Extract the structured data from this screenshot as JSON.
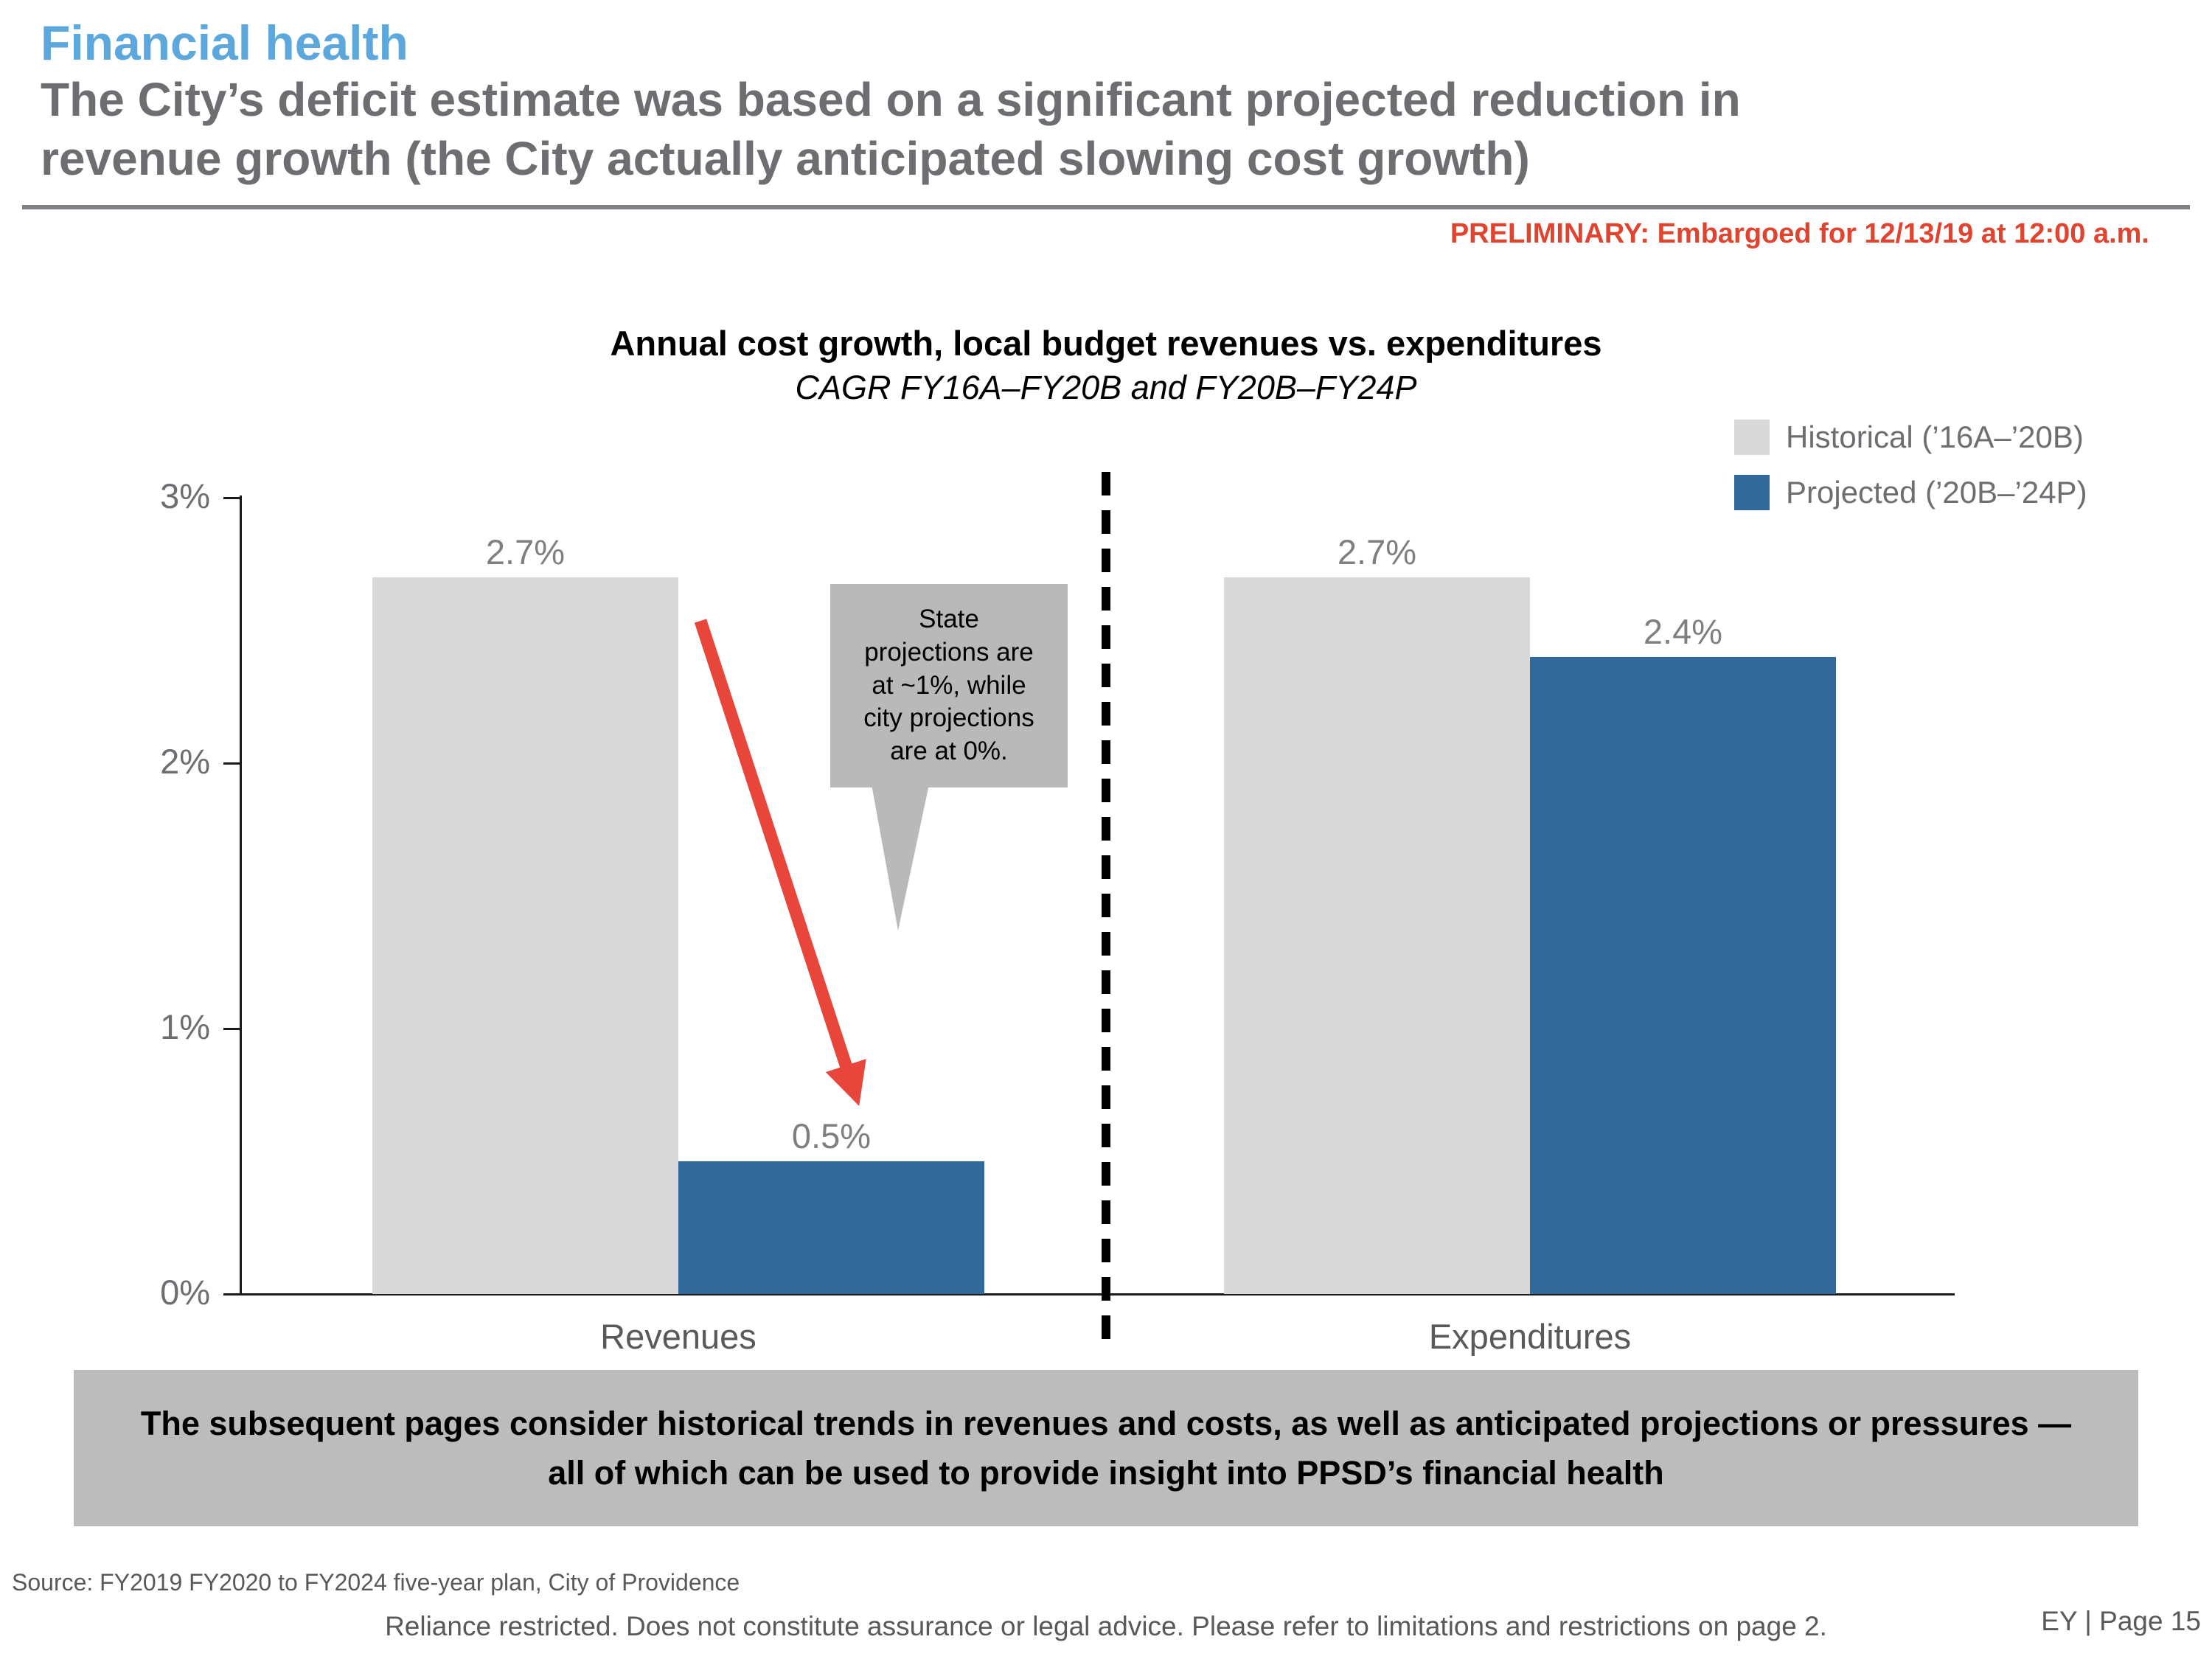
{
  "slide": {
    "kicker": "Financial health",
    "title_lines": [
      "The City’s deficit estimate was based on a significant projected reduction in",
      "revenue growth (the City actually anticipated slowing cost growth)"
    ],
    "preliminary": "PRELIMINARY: Embargoed for 12/13/19 at 12:00 a.m."
  },
  "chart_data": {
    "type": "bar",
    "title": "Annual cost growth, local budget revenues vs. expenditures",
    "subtitle": "CAGR FY16A–FY20B and FY20B–FY24P",
    "categories": [
      "Revenues",
      "Expenditures"
    ],
    "series": [
      {
        "name": "Historical (’16A–’20B)",
        "color": "#d9d9d9",
        "values": [
          2.7,
          2.7
        ],
        "labels": [
          "2.7%",
          "2.7%"
        ]
      },
      {
        "name": "Projected (’20B–’24P)",
        "color": "#316a9a",
        "values": [
          0.5,
          2.4
        ],
        "labels": [
          "0.5%",
          "2.4%"
        ]
      }
    ],
    "ylim": [
      0,
      3
    ],
    "yticks": [
      "3%",
      "2%",
      "1%",
      "0%"
    ],
    "legend_position": "top-right",
    "grid": false,
    "annotations": {
      "callout_text": "State projections are at ~1%, while city projections are at 0%."
    }
  },
  "banner": {
    "lines": [
      "The subsequent pages consider historical trends in revenues and costs, as well as anticipated projections or pressures —",
      "all of which can be used to provide insight into PPSD’s financial health"
    ]
  },
  "footer": {
    "source": "Source: FY2019 FY2020 to FY2024 five-year plan, City of Providence",
    "reliance": "Reliance restricted. Does not constitute assurance or legal advice. Please refer to limitations and restrictions on page 2.",
    "page": "EY | Page 15"
  },
  "colors": {
    "kicker_blue": "#5ca7dc",
    "heading_gray": "#6d6e71",
    "preliminary_red": "#e0442f",
    "bar_historical": "#d9d9d9",
    "bar_projected": "#316a9a",
    "arrow_red": "#e8463a",
    "callout_gray": "#b9b9b9",
    "banner_gray": "#bcbcbc"
  }
}
